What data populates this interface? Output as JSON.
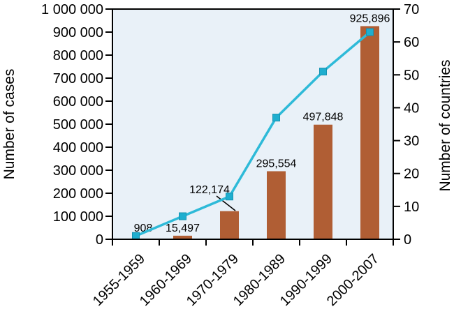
{
  "figure": {
    "title": "",
    "left_axis_title": "Number of cases",
    "right_axis_title": "Number of countries"
  },
  "chart_data": {
    "type": "bar",
    "subtype": "combo-bar-line-dual-axis",
    "categories": [
      "1955-1959",
      "1960-1969",
      "1970-1979",
      "1980-1989",
      "1990-1999",
      "2000-2007"
    ],
    "series": [
      {
        "name": "Number of cases",
        "type": "bar",
        "axis": "left",
        "color": "#B05E34",
        "values": [
          908,
          15497,
          122174,
          295554,
          497848,
          925896
        ],
        "data_labels": [
          "908",
          "15,497",
          "122,174",
          "295,554",
          "497,848",
          "925,896"
        ]
      },
      {
        "name": "Number of countries",
        "type": "line",
        "axis": "right",
        "color": "#2EBAD8",
        "marker": "square",
        "values": [
          1,
          7,
          13,
          37,
          51,
          63
        ]
      }
    ],
    "left_axis": {
      "title": "Number of cases",
      "min": 0,
      "max": 1000000,
      "step": 100000,
      "tick_labels": [
        "0",
        "100 000",
        "200 000",
        "300 000",
        "400 000",
        "500 000",
        "600 000",
        "700 000",
        "800 000",
        "900 000",
        "1 000 000"
      ]
    },
    "right_axis": {
      "title": "Number of countries",
      "min": 0,
      "max": 70,
      "step": 10,
      "tick_labels": [
        "0",
        "10",
        "20",
        "30",
        "40",
        "50",
        "60",
        "70"
      ]
    },
    "plot_background": "#E9F1F8",
    "axis_color": "#000000",
    "grid": false,
    "legend_position": "none"
  }
}
